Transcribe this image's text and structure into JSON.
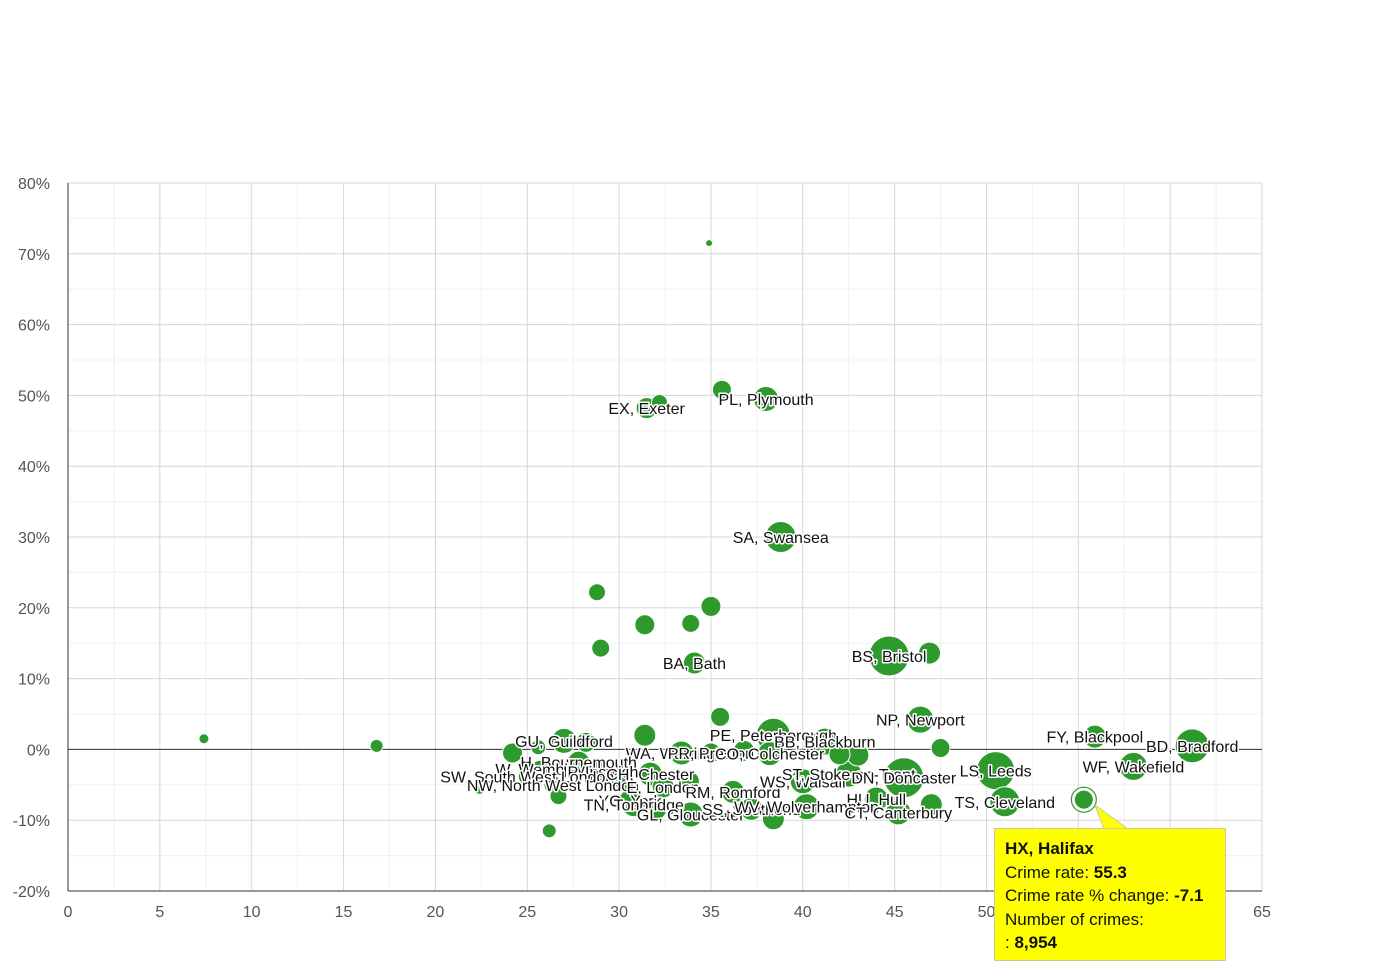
{
  "chart_data": {
    "type": "scatter",
    "title": "",
    "xlabel": "",
    "ylabel": "",
    "xlim": [
      0,
      65
    ],
    "ylim": [
      -20,
      80
    ],
    "x_ticks": [
      "0",
      "5",
      "10",
      "15",
      "20",
      "25",
      "30",
      "35",
      "40",
      "45",
      "50",
      "55",
      "60",
      "65"
    ],
    "y_ticks": [
      "-20%",
      "-10%",
      "0%",
      "10%",
      "20%",
      "30%",
      "40%",
      "50%",
      "60%",
      "70%",
      "80%"
    ],
    "grid": true,
    "point_color": "#2e9a2e",
    "points": [
      {
        "label": "",
        "x": 7.4,
        "y": 1.5,
        "size": 1
      },
      {
        "label": "",
        "x": 16.8,
        "y": 0.5,
        "size": 1.3
      },
      {
        "label": "",
        "x": 22.4,
        "y": -5.5,
        "size": 1.2
      },
      {
        "label": "",
        "x": 26.2,
        "y": -11.5,
        "size": 1.4
      },
      {
        "label": "",
        "x": 34.9,
        "y": 71.5,
        "size": 0.7
      },
      {
        "label": "EX, Exeter",
        "x": 31.5,
        "y": 48.2,
        "size": 2.1
      },
      {
        "label": "",
        "x": 32.2,
        "y": 49.0,
        "size": 1.6
      },
      {
        "label": "",
        "x": 35.6,
        "y": 50.8,
        "size": 1.9
      },
      {
        "label": "PL, Plymouth",
        "x": 38.0,
        "y": 49.5,
        "size": 2.5
      },
      {
        "label": "SA, Swansea",
        "x": 38.8,
        "y": 30.0,
        "size": 3.1
      },
      {
        "label": "",
        "x": 28.8,
        "y": 22.2,
        "size": 1.7
      },
      {
        "label": "",
        "x": 35.0,
        "y": 20.2,
        "size": 2.0
      },
      {
        "label": "",
        "x": 31.4,
        "y": 17.6,
        "size": 2.0
      },
      {
        "label": "",
        "x": 33.9,
        "y": 17.8,
        "size": 1.8
      },
      {
        "label": "",
        "x": 29.0,
        "y": 14.3,
        "size": 1.8
      },
      {
        "label": "BA, Bath",
        "x": 34.1,
        "y": 12.2,
        "size": 2.2
      },
      {
        "label": "BS, Bristol",
        "x": 44.7,
        "y": 13.2,
        "size": 4.0
      },
      {
        "label": "",
        "x": 46.9,
        "y": 13.6,
        "size": 2.2
      },
      {
        "label": "",
        "x": 35.5,
        "y": 4.6,
        "size": 1.9
      },
      {
        "label": "NP, Newport",
        "x": 46.4,
        "y": 4.2,
        "size": 2.7
      },
      {
        "label": "",
        "x": 47.5,
        "y": 0.2,
        "size": 1.9
      },
      {
        "label": "",
        "x": 31.4,
        "y": 2.0,
        "size": 2.2
      },
      {
        "label": "",
        "x": 24.2,
        "y": -0.5,
        "size": 2.0
      },
      {
        "label": "",
        "x": 25.6,
        "y": 0.3,
        "size": 1.5
      },
      {
        "label": "GU, Guildford",
        "x": 27.0,
        "y": 1.2,
        "size": 2.5
      },
      {
        "label": "",
        "x": 28.2,
        "y": 1.0,
        "size": 2.0
      },
      {
        "label": "",
        "x": 28.5,
        "y": 1.1,
        "size": 1.2
      },
      {
        "label": "PE, Peterborough",
        "x": 38.4,
        "y": 2.0,
        "size": 3.4
      },
      {
        "label": "BB, Blackburn",
        "x": 41.2,
        "y": 1.1,
        "size": 2.7
      },
      {
        "label": "",
        "x": 43.0,
        "y": -0.8,
        "size": 2.2
      },
      {
        "label": "WA, Warrington",
        "x": 33.4,
        "y": -0.5,
        "size": 2.4
      },
      {
        "label": "PR, Preston",
        "x": 35.0,
        "y": -0.5,
        "size": 2.0
      },
      {
        "label": "CO, Colchester",
        "x": 38.2,
        "y": -0.6,
        "size": 2.4
      },
      {
        "label": "",
        "x": 42.0,
        "y": -0.7,
        "size": 2.1
      },
      {
        "label": "",
        "x": 36.8,
        "y": -0.2,
        "size": 2.1
      },
      {
        "label": "H, Bournemouth",
        "x": 27.8,
        "y": -1.8,
        "size": 2.2
      },
      {
        "label": "W, Wembley",
        "x": 25.7,
        "y": -2.8,
        "size": 1.8
      },
      {
        "label": "IP, Ipswich",
        "x": 29.0,
        "y": -3.1,
        "size": 2.3
      },
      {
        "label": "SW, South West London",
        "x": 25.0,
        "y": -3.8,
        "size": 1.8
      },
      {
        "label": "NW, North West London",
        "x": 26.4,
        "y": -5.0,
        "size": 1.8
      },
      {
        "label": "",
        "x": 26.7,
        "y": -6.6,
        "size": 1.7
      },
      {
        "label": "",
        "x": 30.3,
        "y": -4.5,
        "size": 2.0
      },
      {
        "label": "CH, Chester",
        "x": 31.7,
        "y": -3.5,
        "size": 2.4
      },
      {
        "label": "E, London",
        "x": 32.4,
        "y": -5.3,
        "size": 2.2
      },
      {
        "label": "",
        "x": 33.8,
        "y": -4.5,
        "size": 2.1
      },
      {
        "label": "RM, Romford",
        "x": 36.2,
        "y": -6.0,
        "size": 2.3
      },
      {
        "label": "WS, Walsall",
        "x": 40.0,
        "y": -4.5,
        "size": 2.5
      },
      {
        "label": "ST, Stoke-on-Trent",
        "x": 42.5,
        "y": -3.5,
        "size": 2.6
      },
      {
        "label": "DN, Doncaster",
        "x": 45.5,
        "y": -4.0,
        "size": 4.0
      },
      {
        "label": "LS, Leeds",
        "x": 50.5,
        "y": -3.0,
        "size": 3.8
      },
      {
        "label": "HU, Hull",
        "x": 44.0,
        "y": -7.0,
        "size": 2.4
      },
      {
        "label": "TS, Cleveland",
        "x": 51.0,
        "y": -7.4,
        "size": 3.0
      },
      {
        "label": "",
        "x": 47.0,
        "y": -7.8,
        "size": 2.2
      },
      {
        "label": "YO, York",
        "x": 30.6,
        "y": -7.2,
        "size": 2.2
      },
      {
        "label": "TN, Tonbridge",
        "x": 30.8,
        "y": -7.8,
        "size": 2.4
      },
      {
        "label": "",
        "x": 32.0,
        "y": -8.4,
        "size": 2.2
      },
      {
        "label": "GL, Gloucester",
        "x": 33.9,
        "y": -9.2,
        "size": 2.5
      },
      {
        "label": "SS, Southend",
        "x": 37.2,
        "y": -8.4,
        "size": 2.3
      },
      {
        "label": "",
        "x": 38.4,
        "y": -9.8,
        "size": 2.2
      },
      {
        "label": "WV, Wolverhampton",
        "x": 40.2,
        "y": -8.1,
        "size": 2.6
      },
      {
        "label": "CT, Canterbury",
        "x": 45.2,
        "y": -8.9,
        "size": 2.5
      },
      {
        "label": "HX, Halifax",
        "x": 55.3,
        "y": -7.1,
        "size": 1.9,
        "highlight": true
      },
      {
        "label": "FY, Blackpool",
        "x": 55.9,
        "y": 1.8,
        "size": 2.3
      },
      {
        "label": "WF, Wakefield",
        "x": 58.0,
        "y": -2.4,
        "size": 2.8
      },
      {
        "label": "BD, Bradford",
        "x": 61.2,
        "y": 0.5,
        "size": 3.4
      }
    ],
    "tooltip": {
      "title": "HX, Halifax",
      "crime_rate_label": "Crime rate: ",
      "crime_rate_value": "55.3",
      "change_label": "Crime rate % change: ",
      "change_value": "-7.1",
      "count_label": "Number of crimes:",
      "count_value": "8,954"
    }
  }
}
